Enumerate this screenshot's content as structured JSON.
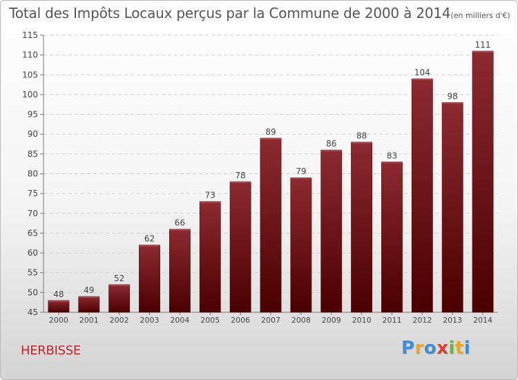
{
  "chart_data": {
    "type": "bar",
    "title": "Total des Impôts Locaux perçus par la Commune de 2000 à 2014",
    "subtitle": "(en milliers d'€)",
    "xlabel": "",
    "ylabel": "",
    "categories": [
      "2000",
      "2001",
      "2002",
      "2003",
      "2004",
      "2005",
      "2006",
      "2007",
      "2008",
      "2009",
      "2010",
      "2011",
      "2012",
      "2013",
      "2014"
    ],
    "values": [
      48,
      49,
      52,
      62,
      66,
      73,
      78,
      89,
      79,
      86,
      88,
      83,
      104,
      98,
      111
    ],
    "ylim": [
      45,
      115
    ],
    "yticks": [
      45,
      50,
      55,
      60,
      65,
      70,
      75,
      80,
      85,
      90,
      95,
      100,
      105,
      110,
      115
    ],
    "grid": true,
    "bar_color_top": "#8c2a2f",
    "bar_color_bottom": "#4a0000"
  },
  "commune": "HERBISSE",
  "logo": {
    "text": "Proxiti",
    "letters": [
      {
        "ch": "P",
        "color": "#3a8fd6"
      },
      {
        "ch": "r",
        "color": "#f0a21c"
      },
      {
        "ch": "o",
        "color": "#3a8fd6"
      },
      {
        "ch": "x",
        "color": "#e23b2e"
      },
      {
        "ch": "i",
        "color": "#6bb33c"
      },
      {
        "ch": "t",
        "color": "#f0a21c"
      },
      {
        "ch": "i",
        "color": "#3a8fd6"
      }
    ]
  }
}
